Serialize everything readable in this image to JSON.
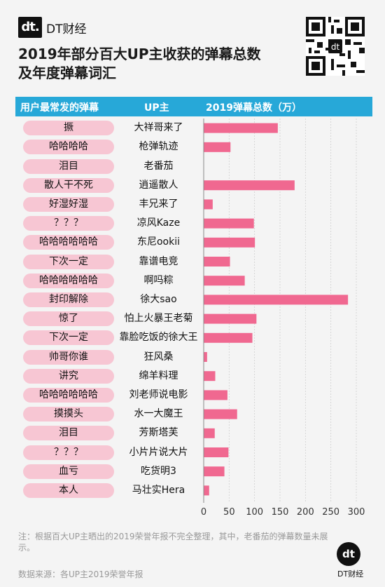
{
  "brand": {
    "mark": "dt.",
    "name": "DT财经"
  },
  "title_line1": "2019年部分百大UP主收获的弹幕总数",
  "title_line2": "及年度弹幕词汇",
  "headers": {
    "col1": "用户最常发的弹幕",
    "col2": "UP主",
    "col3": "2019弹幕总数（万）"
  },
  "colors": {
    "bar": "#f06890",
    "pill": "#f7c6d3",
    "header": "#27a8d8"
  },
  "chart_data": {
    "type": "bar",
    "orientation": "horizontal",
    "xlim": [
      0,
      300
    ],
    "xticks": [
      "0",
      "50",
      "100",
      "150",
      "200",
      "250",
      "300"
    ],
    "rows": [
      {
        "danmu": "撅",
        "up": "大祥哥来了",
        "value": 145
      },
      {
        "danmu": "哈哈哈哈",
        "up": "枪弹轨迹",
        "value": 52
      },
      {
        "danmu": "泪目",
        "up": "老番茄",
        "value": 0
      },
      {
        "danmu": "散人干不死",
        "up": "逍遥散人",
        "value": 178
      },
      {
        "danmu": "好湿好湿",
        "up": "丰兄来了",
        "value": 17
      },
      {
        "danmu": "？？？",
        "up": "凉风Kaze",
        "value": 98
      },
      {
        "danmu": "哈哈哈哈哈哈",
        "up": "东尼ookii",
        "value": 100
      },
      {
        "danmu": "下次一定",
        "up": "靠谱电竞",
        "value": 51
      },
      {
        "danmu": "哈哈哈哈哈哈",
        "up": "啊吗粽",
        "value": 80
      },
      {
        "danmu": "封印解除",
        "up": "徐大sao",
        "value": 283
      },
      {
        "danmu": "惊了",
        "up": "怕上火暴王老菊",
        "value": 103
      },
      {
        "danmu": "下次一定",
        "up": "靠脸吃饭的徐大王",
        "value": 95
      },
      {
        "danmu": "帅哥你谁",
        "up": "狂风桑",
        "value": 6
      },
      {
        "danmu": "讲究",
        "up": "绵羊料理",
        "value": 22
      },
      {
        "danmu": "哈哈哈哈哈哈",
        "up": "刘老师说电影",
        "value": 46
      },
      {
        "danmu": "摸摸头",
        "up": "水一大魔王",
        "value": 65
      },
      {
        "danmu": "泪目",
        "up": "芳斯塔芙",
        "value": 21
      },
      {
        "danmu": "？？？",
        "up": "小片片说大片",
        "value": 48
      },
      {
        "danmu": "血亏",
        "up": "吃货明3",
        "value": 40
      },
      {
        "danmu": "本人",
        "up": "马壮实Hera",
        "value": 10
      }
    ]
  },
  "note": "注：根据百大UP主晒出的2019荣誉年报不完全整理，其中，老番茄的弹幕数量未展示。",
  "source": "数据来源：各UP主2019荣誉年报",
  "footer_brand": "DT财经"
}
